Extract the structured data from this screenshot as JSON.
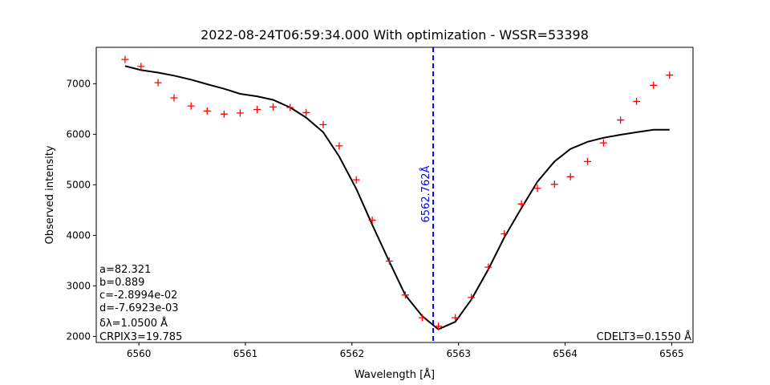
{
  "chart_data": {
    "type": "line",
    "title": "2022-08-24T06:59:34.000 With optimization - WSSR=53398",
    "xlabel": "Wavelength [Å]",
    "ylabel": "Observed intensity",
    "xlim": [
      6559.6,
      6565.2
    ],
    "ylim": [
      1880,
      7720
    ],
    "xticks": [
      6560,
      6561,
      6562,
      6563,
      6564,
      6565
    ],
    "yticks": [
      2000,
      3000,
      4000,
      5000,
      6000,
      7000
    ],
    "grid": false,
    "legend": "none",
    "series": [
      {
        "kind": "scatter",
        "marker": "+",
        "color": "#ff0000",
        "x": [
          6559.87,
          6560.02,
          6560.18,
          6560.33,
          6560.49,
          6560.64,
          6560.8,
          6560.95,
          6561.11,
          6561.26,
          6561.42,
          6561.57,
          6561.73,
          6561.88,
          6562.04,
          6562.19,
          6562.35,
          6562.5,
          6562.66,
          6562.81,
          6562.97,
          6563.12,
          6563.28,
          6563.43,
          6563.59,
          6563.74,
          6563.9,
          6564.05,
          6564.21,
          6564.36,
          6564.52,
          6564.67,
          6564.83,
          6564.98
        ],
        "y": [
          7480,
          7340,
          7020,
          6720,
          6560,
          6460,
          6400,
          6420,
          6490,
          6540,
          6530,
          6430,
          6190,
          5770,
          5100,
          4300,
          3490,
          2820,
          2370,
          2200,
          2370,
          2770,
          3370,
          4030,
          4620,
          4930,
          5010,
          5160,
          5460,
          5830,
          6280,
          6650,
          6970,
          7170
        ]
      },
      {
        "kind": "line",
        "color": "#000000",
        "x": [
          6559.87,
          6560.02,
          6560.18,
          6560.33,
          6560.49,
          6560.64,
          6560.8,
          6560.95,
          6561.11,
          6561.26,
          6561.42,
          6561.57,
          6561.73,
          6561.88,
          6562.04,
          6562.19,
          6562.35,
          6562.5,
          6562.66,
          6562.81,
          6562.97,
          6563.12,
          6563.28,
          6563.43,
          6563.59,
          6563.74,
          6563.9,
          6564.05,
          6564.21,
          6564.36,
          6564.52,
          6564.67,
          6564.83,
          6564.98
        ],
        "y": [
          7350,
          7270,
          7220,
          7160,
          7080,
          6990,
          6900,
          6800,
          6750,
          6680,
          6530,
          6330,
          6040,
          5560,
          4920,
          4210,
          3480,
          2820,
          2400,
          2140,
          2290,
          2730,
          3330,
          3960,
          4540,
          5060,
          5460,
          5710,
          5850,
          5930,
          5990,
          6040,
          6090,
          6090
        ]
      }
    ],
    "vline": {
      "x": 6562.762,
      "color": "#0000ff",
      "style": "dashed",
      "label": "6562.762Å"
    },
    "annotations_left": [
      "a=82.321",
      "b=0.889",
      "c=-2.8994e-02",
      "d=-7.6923e-03",
      "δλ=1.0500 Å",
      "CRPIX3=19.785"
    ],
    "annotation_right": "CDELT3=0.1550 Å"
  }
}
